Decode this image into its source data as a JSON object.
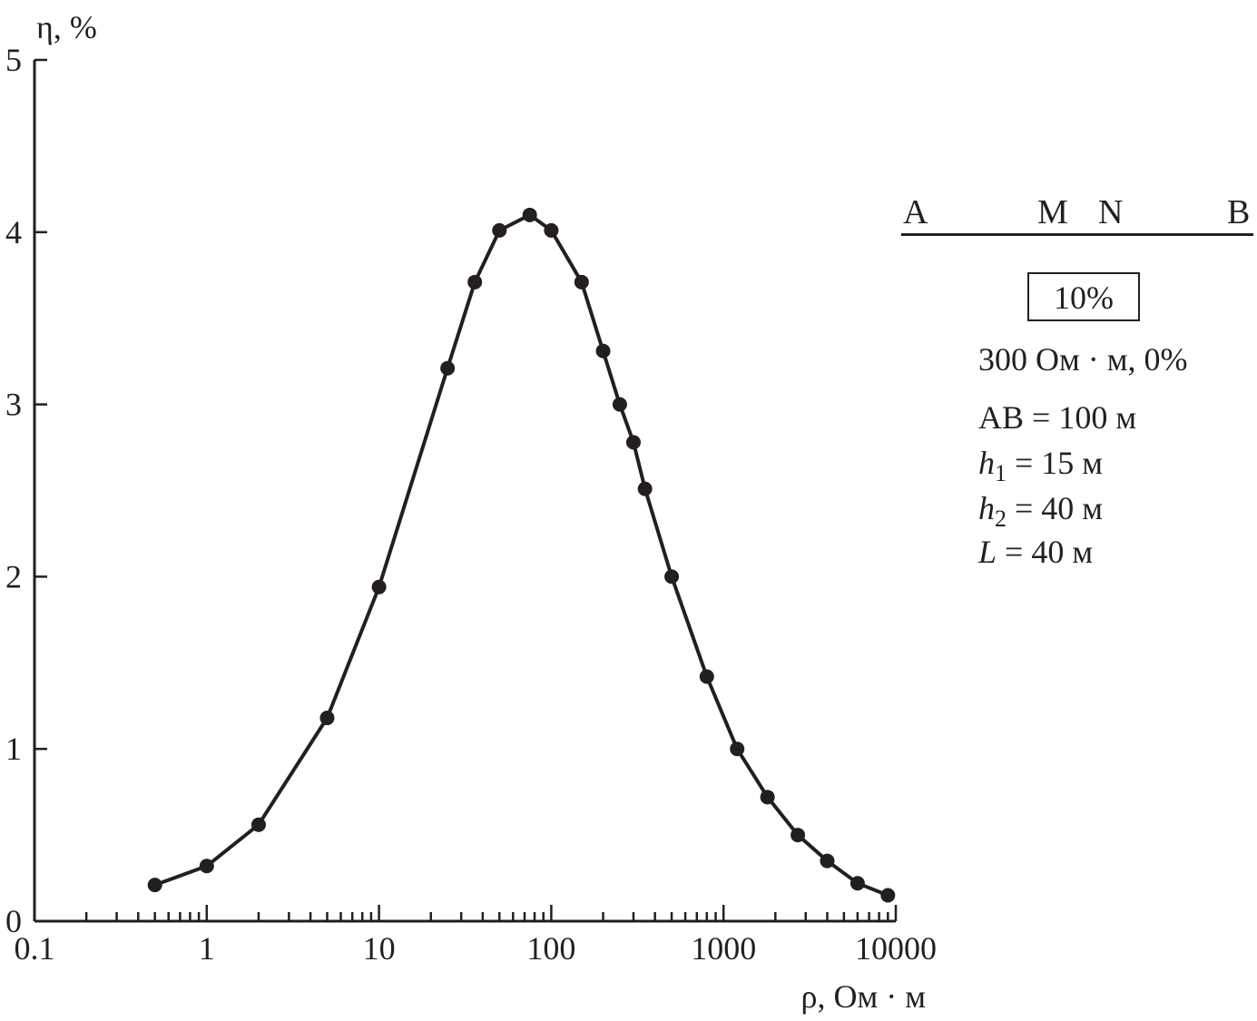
{
  "chart_data": {
    "type": "line",
    "xscale": "log",
    "xlim": [
      0.1,
      10000
    ],
    "ylim": [
      0,
      5
    ],
    "xlabel": "ρ, Ом · м",
    "ylabel": "η, %",
    "xticks": [
      "0.1",
      "1",
      "10",
      "100",
      "1000",
      "10000"
    ],
    "yticks": [
      "0",
      "1",
      "2",
      "3",
      "4",
      "5"
    ],
    "series": [
      {
        "x": [
          0.5,
          1,
          2,
          5,
          10,
          25,
          36,
          50,
          75,
          100,
          150,
          200,
          250,
          300,
          350,
          500,
          800,
          1200,
          1800,
          2700,
          4000,
          6000,
          9000
        ],
        "y": [
          0.21,
          0.32,
          0.56,
          1.18,
          1.94,
          3.21,
          3.71,
          4.01,
          4.1,
          4.01,
          3.71,
          3.31,
          3.0,
          2.78,
          2.51,
          2.0,
          1.42,
          1.0,
          0.72,
          0.5,
          0.35,
          0.22,
          0.15
        ]
      }
    ],
    "markers": "filled-circle",
    "color": "#231f20",
    "grid": false
  },
  "legend": {
    "electrodes": {
      "a": "A",
      "m": "M",
      "n": "N",
      "b": "B"
    },
    "box_label": "10%",
    "host_rock": "300 Ом · м, 0%",
    "ab": "AB = 100 м",
    "h1_var": "h",
    "h1_sub": "1",
    "h1_val": " = 15 м",
    "h2_var": "h",
    "h2_sub": "2",
    "h2_val": " = 40 м",
    "l_var": "L",
    "l_val": " = 40 м"
  }
}
